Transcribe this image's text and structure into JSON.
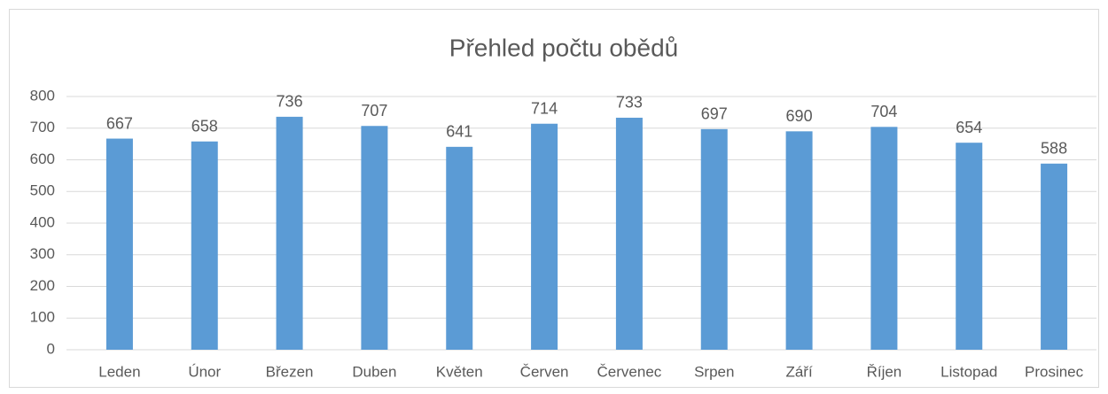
{
  "chart_data": {
    "type": "bar",
    "title": "Přehled počtu obědů",
    "categories": [
      "Leden",
      "Únor",
      "Březen",
      "Duben",
      "Květen",
      "Červen",
      "Červenec",
      "Srpen",
      "Září",
      "Říjen",
      "Listopad",
      "Prosinec"
    ],
    "values": [
      667,
      658,
      736,
      707,
      641,
      714,
      733,
      697,
      690,
      704,
      654,
      588
    ],
    "color": "#5b9bd5",
    "ylim": [
      0,
      800
    ],
    "yticks": [
      0,
      100,
      200,
      300,
      400,
      500,
      600,
      700,
      800
    ],
    "grid": true
  }
}
